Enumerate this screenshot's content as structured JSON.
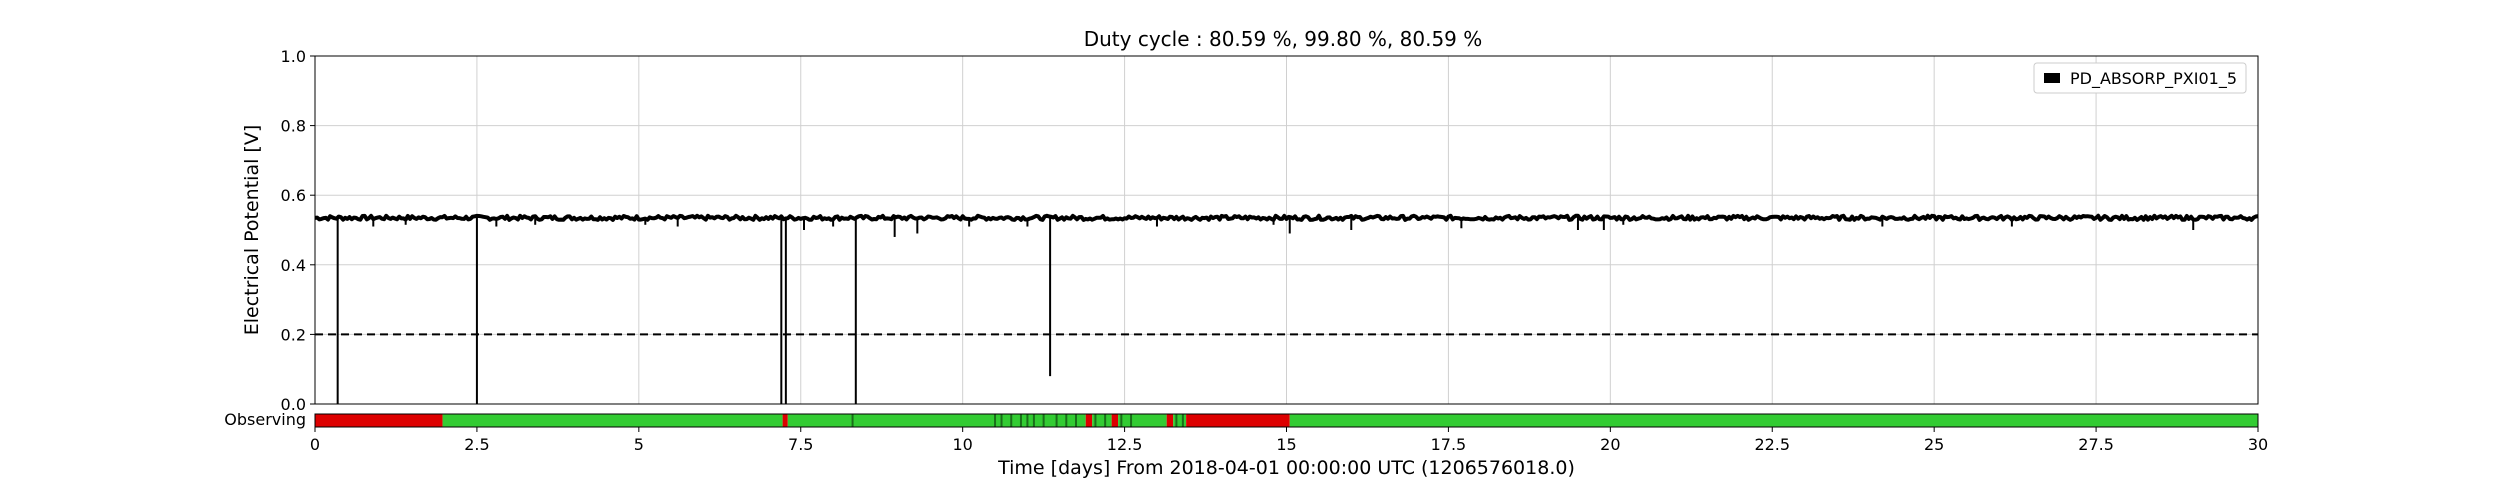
{
  "chart_data": {
    "type": "line",
    "title": "Duty cycle : 80.59 %, 99.80 %, 80.59 %",
    "xlabel": "Time [days] From 2018-04-01 00:00:00 UTC (1206576018.0)",
    "ylabel": "Electrical Potential [V]",
    "xlim": [
      0,
      30
    ],
    "ylim": [
      0,
      1
    ],
    "x_ticks": [
      0,
      2.5,
      5,
      7.5,
      10,
      12.5,
      15,
      17.5,
      20,
      22.5,
      25,
      27.5,
      30
    ],
    "x_tick_labels": [
      "0",
      "2.5",
      "5",
      "7.5",
      "10",
      "12.5",
      "15",
      "17.5",
      "20",
      "22.5",
      "25",
      "27.5",
      "30"
    ],
    "y_ticks": [
      0,
      0.2,
      0.4,
      0.6,
      0.8,
      1.0
    ],
    "y_tick_labels": [
      "0.0",
      "0.2",
      "0.4",
      "0.6",
      "0.8",
      "1.0"
    ],
    "grid": true,
    "legend_position": "top-right",
    "series": [
      {
        "name": "PD_ABSORP_PXI01_5",
        "color": "#000000",
        "baseline": 0.535,
        "dropouts": [
          {
            "x": 0.35,
            "y": 0.0
          },
          {
            "x": 2.5,
            "y": 0.0
          },
          {
            "x": 7.2,
            "y": 0.0
          },
          {
            "x": 7.27,
            "y": 0.0
          },
          {
            "x": 8.35,
            "y": 0.0
          },
          {
            "x": 11.35,
            "y": 0.08
          }
        ],
        "dips": [
          {
            "x": 0.9,
            "y": 0.51
          },
          {
            "x": 1.4,
            "y": 0.515
          },
          {
            "x": 2.8,
            "y": 0.51
          },
          {
            "x": 3.4,
            "y": 0.515
          },
          {
            "x": 5.1,
            "y": 0.515
          },
          {
            "x": 5.6,
            "y": 0.51
          },
          {
            "x": 7.55,
            "y": 0.5
          },
          {
            "x": 8.0,
            "y": 0.51
          },
          {
            "x": 8.95,
            "y": 0.48
          },
          {
            "x": 9.3,
            "y": 0.49
          },
          {
            "x": 10.1,
            "y": 0.51
          },
          {
            "x": 11.0,
            "y": 0.51
          },
          {
            "x": 13.0,
            "y": 0.51
          },
          {
            "x": 14.8,
            "y": 0.515
          },
          {
            "x": 15.05,
            "y": 0.49
          },
          {
            "x": 16.0,
            "y": 0.5
          },
          {
            "x": 17.7,
            "y": 0.505
          },
          {
            "x": 19.5,
            "y": 0.5
          },
          {
            "x": 19.9,
            "y": 0.5
          },
          {
            "x": 20.2,
            "y": 0.515
          },
          {
            "x": 24.2,
            "y": 0.51
          },
          {
            "x": 26.2,
            "y": 0.51
          },
          {
            "x": 29.0,
            "y": 0.5
          }
        ]
      }
    ],
    "threshold": {
      "y": 0.2,
      "style": "dashed",
      "color": "#000000"
    },
    "segment_bar": {
      "label": "Observing",
      "observing_color": "#33cc33",
      "not_observing_color": "#dd0000",
      "segments": [
        {
          "start": 0,
          "end": 1.97,
          "state": "off"
        },
        {
          "start": 1.97,
          "end": 7.22,
          "state": "on"
        },
        {
          "start": 7.22,
          "end": 7.3,
          "state": "off"
        },
        {
          "start": 7.3,
          "end": 11.9,
          "state": "on"
        },
        {
          "start": 11.9,
          "end": 12.0,
          "state": "off"
        },
        {
          "start": 12.0,
          "end": 12.3,
          "state": "on"
        },
        {
          "start": 12.3,
          "end": 12.4,
          "state": "off"
        },
        {
          "start": 12.4,
          "end": 13.15,
          "state": "on"
        },
        {
          "start": 13.15,
          "end": 13.25,
          "state": "off"
        },
        {
          "start": 13.25,
          "end": 13.45,
          "state": "on"
        },
        {
          "start": 13.45,
          "end": 15.05,
          "state": "off"
        },
        {
          "start": 15.05,
          "end": 30,
          "state": "on"
        }
      ],
      "dark_marks": [
        8.3,
        10.5,
        10.6,
        10.75,
        10.9,
        11.0,
        11.1,
        11.25,
        11.45,
        11.6,
        11.75,
        12.05,
        12.2,
        12.45,
        12.6,
        13.3,
        13.4
      ]
    }
  }
}
